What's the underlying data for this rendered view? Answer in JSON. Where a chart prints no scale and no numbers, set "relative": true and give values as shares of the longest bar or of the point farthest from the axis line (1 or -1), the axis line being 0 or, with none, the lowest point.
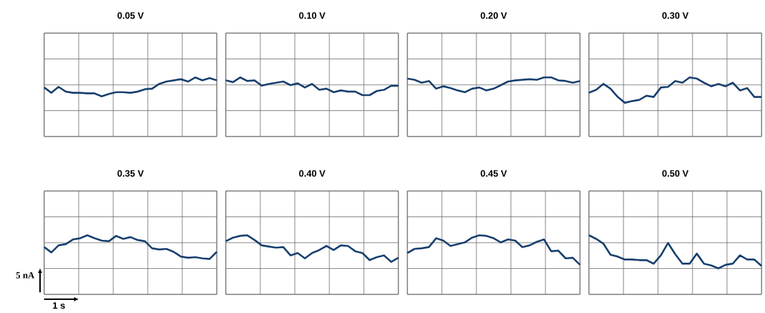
{
  "chart_data": [
    {
      "type": "line",
      "title": "0.05 V",
      "relative": true,
      "grid": true,
      "color": "#173f6e",
      "categories": [
        null,
        null,
        null,
        null,
        null,
        null,
        null,
        null,
        null,
        null,
        null,
        null,
        null,
        null,
        null,
        null,
        null,
        null,
        null,
        null,
        null,
        null,
        null,
        null,
        null
      ],
      "values": [
        0.83,
        0.74,
        0.84,
        0.76,
        0.74,
        0.74,
        0.73,
        0.73,
        0.68,
        0.72,
        0.75,
        0.75,
        0.74,
        0.76,
        0.8,
        0.81,
        0.89,
        0.93,
        0.95,
        0.97,
        0.93,
        1,
        0.95,
        0.99,
        0.95
      ]
    },
    {
      "type": "line",
      "title": "0.10 V",
      "relative": true,
      "grid": true,
      "color": "#173f6e",
      "categories": [
        null,
        null,
        null,
        null,
        null,
        null,
        null,
        null,
        null,
        null,
        null,
        null,
        null,
        null,
        null,
        null,
        null,
        null,
        null,
        null,
        null,
        null,
        null,
        null,
        null
      ],
      "values": [
        0.95,
        0.92,
        1,
        0.94,
        0.95,
        0.86,
        0.89,
        0.91,
        0.93,
        0.87,
        0.9,
        0.83,
        0.89,
        0.79,
        0.81,
        0.75,
        0.78,
        0.76,
        0.76,
        0.7,
        0.7,
        0.77,
        0.79,
        0.86,
        0.86
      ]
    },
    {
      "type": "line",
      "title": "0.20 V",
      "relative": true,
      "grid": true,
      "color": "#173f6e",
      "categories": [
        null,
        null,
        null,
        null,
        null,
        null,
        null,
        null,
        null,
        null,
        null,
        null,
        null,
        null,
        null,
        null,
        null,
        null,
        null,
        null,
        null,
        null,
        null,
        null,
        null
      ],
      "values": [
        0.98,
        0.96,
        0.91,
        0.94,
        0.81,
        0.85,
        0.82,
        0.78,
        0.75,
        0.81,
        0.83,
        0.78,
        0.81,
        0.87,
        0.93,
        0.95,
        0.96,
        0.97,
        0.96,
        1,
        1,
        0.95,
        0.94,
        0.91,
        0.94
      ]
    },
    {
      "type": "line",
      "title": "0.30 V",
      "relative": true,
      "grid": true,
      "color": "#173f6e",
      "categories": [
        null,
        null,
        null,
        null,
        null,
        null,
        null,
        null,
        null,
        null,
        null,
        null,
        null,
        null,
        null,
        null,
        null,
        null,
        null,
        null,
        null,
        null,
        null,
        null,
        null
      ],
      "values": [
        0.74,
        0.79,
        0.89,
        0.81,
        0.67,
        0.57,
        0.6,
        0.62,
        0.69,
        0.67,
        0.83,
        0.84,
        0.94,
        0.91,
        1,
        0.98,
        0.91,
        0.85,
        0.89,
        0.85,
        0.91,
        0.78,
        0.82,
        0.67,
        0.67
      ]
    },
    {
      "type": "line",
      "title": "0.35 V",
      "relative": true,
      "grid": true,
      "color": "#173f6e",
      "annotations": [
        "5 nA",
        "1 s"
      ],
      "categories": [
        null,
        null,
        null,
        null,
        null,
        null,
        null,
        null,
        null,
        null,
        null,
        null,
        null,
        null,
        null,
        null,
        null,
        null,
        null,
        null,
        null,
        null,
        null,
        null,
        null
      ],
      "values": [
        0.8,
        0.71,
        0.83,
        0.85,
        0.93,
        0.95,
        1,
        0.95,
        0.91,
        0.9,
        0.99,
        0.94,
        0.97,
        0.92,
        0.9,
        0.78,
        0.76,
        0.77,
        0.72,
        0.64,
        0.62,
        0.63,
        0.61,
        0.6,
        0.72
      ]
    },
    {
      "type": "line",
      "title": "0.40 V",
      "relative": true,
      "grid": true,
      "color": "#173f6e",
      "categories": [
        null,
        null,
        null,
        null,
        null,
        null,
        null,
        null,
        null,
        null,
        null,
        null,
        null,
        null,
        null,
        null,
        null,
        null,
        null,
        null,
        null,
        null,
        null,
        null,
        null
      ],
      "values": [
        0.9,
        0.96,
        0.99,
        1,
        0.92,
        0.83,
        0.81,
        0.79,
        0.8,
        0.66,
        0.7,
        0.61,
        0.7,
        0.75,
        0.82,
        0.75,
        0.83,
        0.82,
        0.73,
        0.7,
        0.58,
        0.63,
        0.66,
        0.55,
        0.62
      ]
    },
    {
      "type": "line",
      "title": "0.45 V",
      "relative": true,
      "grid": true,
      "color": "#173f6e",
      "categories": [
        null,
        null,
        null,
        null,
        null,
        null,
        null,
        null,
        null,
        null,
        null,
        null,
        null,
        null,
        null,
        null,
        null,
        null,
        null,
        null,
        null,
        null,
        null,
        null,
        null
      ],
      "values": [
        0.7,
        0.77,
        0.78,
        0.8,
        0.95,
        0.91,
        0.82,
        0.85,
        0.88,
        0.96,
        1,
        0.99,
        0.95,
        0.88,
        0.93,
        0.91,
        0.8,
        0.83,
        0.89,
        0.93,
        0.73,
        0.74,
        0.61,
        0.62,
        0.5
      ]
    },
    {
      "type": "line",
      "title": "0.50 V",
      "relative": true,
      "grid": true,
      "color": "#173f6e",
      "categories": [
        null,
        null,
        null,
        null,
        null,
        null,
        null,
        null,
        null,
        null,
        null,
        null,
        null,
        null,
        null,
        null,
        null,
        null,
        null,
        null,
        null,
        null,
        null,
        null,
        null
      ],
      "values": [
        1,
        0.94,
        0.86,
        0.67,
        0.64,
        0.59,
        0.59,
        0.58,
        0.58,
        0.52,
        0.66,
        0.87,
        0.68,
        0.52,
        0.52,
        0.69,
        0.52,
        0.49,
        0.44,
        0.5,
        0.52,
        0.66,
        0.59,
        0.59,
        0.48
      ]
    }
  ]
}
